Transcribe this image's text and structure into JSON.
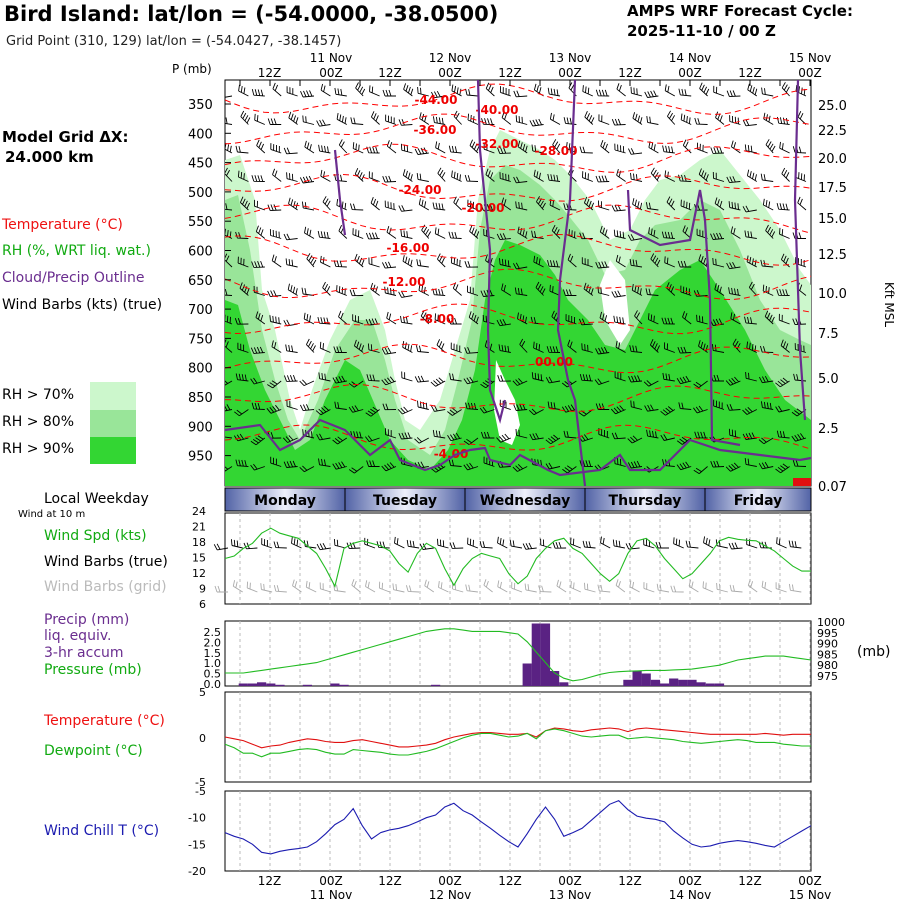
{
  "header": {
    "title": "Bird Island:  lat/lon = (-54.0000, -38.0500)",
    "grid_point": "Grid Point (310, 129) lat/lon = (-54.0427, -38.1457)",
    "cycle_label": "AMPS WRF Forecast Cycle:",
    "cycle_value": "2025-11-10 / 00  Z",
    "model_grid_label": "Model Grid ΔX:",
    "model_grid_value": "24.000 km"
  },
  "legend": {
    "temperature": "Temperature (°C)",
    "rh": "RH (%, WRT liq. wat.)",
    "cloud": "Cloud/Precip Outline",
    "wind_barbs": "Wind Barbs (kts) (true)",
    "rh70": "RH > 70%",
    "rh80": "RH > 80%",
    "rh90": "RH > 90%",
    "rh_colors": [
      "#ccf7cc",
      "#99e599",
      "#33d633"
    ]
  },
  "colors": {
    "temp": "#ff0000",
    "cloud": "#6a2d8f",
    "rh_line": "#22bb22",
    "wind": "#22bb22",
    "precip": "#5a2283",
    "dew": "#22bb22",
    "chill": "#1c1cb0"
  },
  "time_axis": {
    "top_hours": [
      "12Z",
      "00Z",
      "12Z",
      "00Z",
      "12Z",
      "00Z",
      "12Z",
      "00Z",
      "12Z",
      "00Z"
    ],
    "top_dates": [
      "11 Nov",
      "12 Nov",
      "13 Nov",
      "14 Nov",
      "15 Nov"
    ],
    "weekdays": [
      "Monday",
      "Tuesday",
      "Wednesday",
      "Thursday",
      "Friday"
    ],
    "local_weekday_label": "Local Weekday",
    "wind_10m_label": "Wind at 10 m"
  },
  "chart_data": [
    {
      "type": "heatmap",
      "title": "Time-height cross section",
      "ylabel": "P (mb)",
      "y2label": "Kft MSL",
      "pressure_ticks": [
        "350",
        "400",
        "450",
        "500",
        "550",
        "600",
        "650",
        "700",
        "750",
        "800",
        "850",
        "900",
        "950"
      ],
      "kft_ticks": [
        "25.0",
        "22.5",
        "20.0",
        "17.5",
        "15.0",
        "12.5",
        "10.0",
        "7.5",
        "5.0",
        "2.5",
        "0.07"
      ],
      "temperature_labels": [
        "-44.00",
        "-40.00",
        "-36.00",
        "-32.00",
        "-28.00",
        "-24.00",
        "-20.00",
        "-16.00",
        "-12.00",
        "-8.00",
        "00.00",
        "-4.00"
      ]
    },
    {
      "type": "line",
      "title": "Wind Spd (kts)",
      "series_labels": [
        "Wind Spd (kts)",
        "Wind Barbs (true)",
        "Wind Barbs (grid)"
      ],
      "y_ticks": [
        "24",
        "21",
        "18",
        "15",
        "12",
        "9",
        "6"
      ],
      "ylim": [
        6,
        24
      ],
      "values": [
        15,
        15.5,
        17,
        18,
        20,
        21,
        20,
        19.5,
        19,
        17.5,
        16,
        13,
        9.5,
        17,
        18,
        18.5,
        18,
        17.5,
        16.5,
        14,
        12.3,
        16,
        18,
        17,
        13,
        9.7,
        13,
        15,
        16,
        15.5,
        15,
        12,
        10,
        11.5,
        15,
        17,
        18.5,
        19,
        17,
        16,
        14,
        12,
        10.5,
        12,
        16,
        18.5,
        19,
        17.5,
        15,
        13,
        11,
        12,
        14,
        16,
        18.5,
        19.2,
        18.8,
        18.6,
        18.5,
        17.5,
        16.5,
        15,
        13.5,
        12.5,
        12.5
      ]
    },
    {
      "type": "bar",
      "title": "Precip (mm) liq. equiv. 3-hr accum / Pressure (mb)",
      "series_labels": [
        "Precip (mm)",
        "liq. equiv.",
        "3-hr accum",
        "Pressure (mb)"
      ],
      "y_ticks": [
        "2.5",
        "2.0",
        "1.5",
        "1.0",
        "0.5",
        "0.0"
      ],
      "y2_ticks": [
        "1000",
        "995",
        "990",
        "985",
        "980",
        "975"
      ],
      "y2label": "(mb)",
      "ylim": [
        0,
        2.6
      ],
      "y2lim": [
        975,
        1000
      ],
      "precip": [
        0,
        0,
        0.1,
        0.1,
        0.15,
        0.1,
        0.05,
        0,
        0,
        0.05,
        0,
        0,
        0.1,
        0.05,
        0,
        0,
        0,
        0,
        0,
        0,
        0,
        0,
        0,
        0.05,
        0,
        0,
        0,
        0,
        0,
        0,
        0,
        0,
        0,
        0.9,
        2.5,
        2.5,
        0.6,
        0.15,
        0,
        0,
        0,
        0,
        0,
        0,
        0.25,
        0.6,
        0.5,
        0.25,
        0.1,
        0.3,
        0.25,
        0.25,
        0.15,
        0.1,
        0.1,
        0,
        0,
        0,
        0,
        0,
        0,
        0,
        0,
        0,
        0
      ],
      "pressure": [
        980,
        980,
        980,
        980.5,
        981,
        981.5,
        982,
        982.5,
        983,
        983.5,
        984,
        985,
        986,
        987,
        988,
        989,
        990,
        991,
        992,
        993,
        994,
        995,
        996,
        996.5,
        997,
        997,
        996.5,
        996,
        996,
        996,
        996,
        995.5,
        995,
        992,
        988,
        984,
        980,
        978,
        977,
        977.5,
        978.5,
        979.5,
        980.2,
        980.5,
        980.7,
        980.8,
        981,
        981,
        981,
        981.2,
        981.3,
        981.5,
        982,
        982.5,
        983,
        984,
        985,
        985.5,
        986,
        986.5,
        986.5,
        986.5,
        986,
        985.5,
        985
      ]
    },
    {
      "type": "line",
      "title": "Temperature / Dewpoint",
      "series_labels": [
        "Temperature (°C)",
        "Dewpoint (°C)"
      ],
      "y_ticks": [
        "5",
        "0",
        "-5"
      ],
      "ylim": [
        -5,
        5
      ],
      "temperature": [
        0,
        -0.2,
        -0.4,
        -0.8,
        -1.2,
        -1,
        -0.9,
        -0.6,
        -0.4,
        -0.2,
        -0.3,
        -0.5,
        -0.6,
        -0.6,
        -0.4,
        -0.3,
        -0.5,
        -0.7,
        -0.9,
        -1.1,
        -1.1,
        -1,
        -0.9,
        -0.7,
        -0.3,
        0,
        0.2,
        0.4,
        0.5,
        0.5,
        0.4,
        0.3,
        0.3,
        0.4,
        0,
        0.7,
        1,
        0.9,
        0.7,
        0.6,
        0.8,
        0.9,
        1,
        0.9,
        0.6,
        0.9,
        1,
        0.9,
        0.8,
        0.7,
        0.6,
        0.5,
        0.4,
        0.3,
        0.3,
        0.3,
        0.3,
        0.3,
        0.3,
        0.4,
        0.3,
        0.2,
        0.3,
        0.3,
        0.3
      ],
      "dewpoint": [
        -0.8,
        -1.2,
        -1.8,
        -1.8,
        -2.2,
        -1.8,
        -1.8,
        -1.6,
        -1.4,
        -1.3,
        -1.4,
        -1.7,
        -1.9,
        -1.9,
        -1.4,
        -1.5,
        -1.6,
        -1.7,
        -1.9,
        -2,
        -2,
        -1.8,
        -1.6,
        -1.3,
        -0.9,
        -0.5,
        -0.1,
        0.2,
        0.4,
        0.4,
        0.2,
        0,
        0.1,
        0.4,
        -0.2,
        0.7,
        0.9,
        0.7,
        0.4,
        0.1,
        0,
        0.1,
        0.2,
        0.2,
        -0.2,
        -0.1,
        0,
        -0.1,
        -0.2,
        -0.3,
        -0.5,
        -0.6,
        -0.7,
        -0.6,
        -0.5,
        -0.4,
        -0.3,
        -0.4,
        -0.6,
        -0.6,
        -0.6,
        -0.8,
        -0.9,
        -1,
        -1
      ]
    },
    {
      "type": "line",
      "title": "Wind Chill T (°C)",
      "series_labels": [
        "Wind Chill T (°C)"
      ],
      "y_ticks": [
        "-5",
        "-10",
        "-15",
        "-20"
      ],
      "ylim": [
        -20,
        -5
      ],
      "values": [
        -12.8,
        -13.5,
        -14,
        -15,
        -16.5,
        -16.8,
        -16.3,
        -16,
        -15.8,
        -15.5,
        -14.5,
        -13,
        -11.3,
        -10.3,
        -8.3,
        -11.5,
        -14,
        -12.8,
        -12.3,
        -12,
        -11.5,
        -10.8,
        -10,
        -9.5,
        -8,
        -7.3,
        -8.7,
        -9.5,
        -10.8,
        -12,
        -13.3,
        -14.5,
        -15.5,
        -13,
        -10.3,
        -8,
        -10.3,
        -13.5,
        -12.8,
        -12,
        -10.5,
        -9,
        -7.5,
        -6.8,
        -8.5,
        -9.7,
        -10.1,
        -10.3,
        -10.8,
        -12.5,
        -13.8,
        -15,
        -15.5,
        -15.3,
        -14.8,
        -14.5,
        -14.3,
        -14.5,
        -14.8,
        -15.2,
        -15.5,
        -14.5,
        -13.5,
        -12.5,
        -11.5
      ]
    }
  ],
  "bottom_axis": {
    "hours": [
      "12Z",
      "00Z",
      "12Z",
      "00Z",
      "12Z",
      "00Z",
      "12Z",
      "00Z",
      "12Z",
      "00Z"
    ],
    "dates": [
      "11 Nov",
      "12 Nov",
      "13 Nov",
      "14 Nov",
      "15 Nov"
    ]
  }
}
